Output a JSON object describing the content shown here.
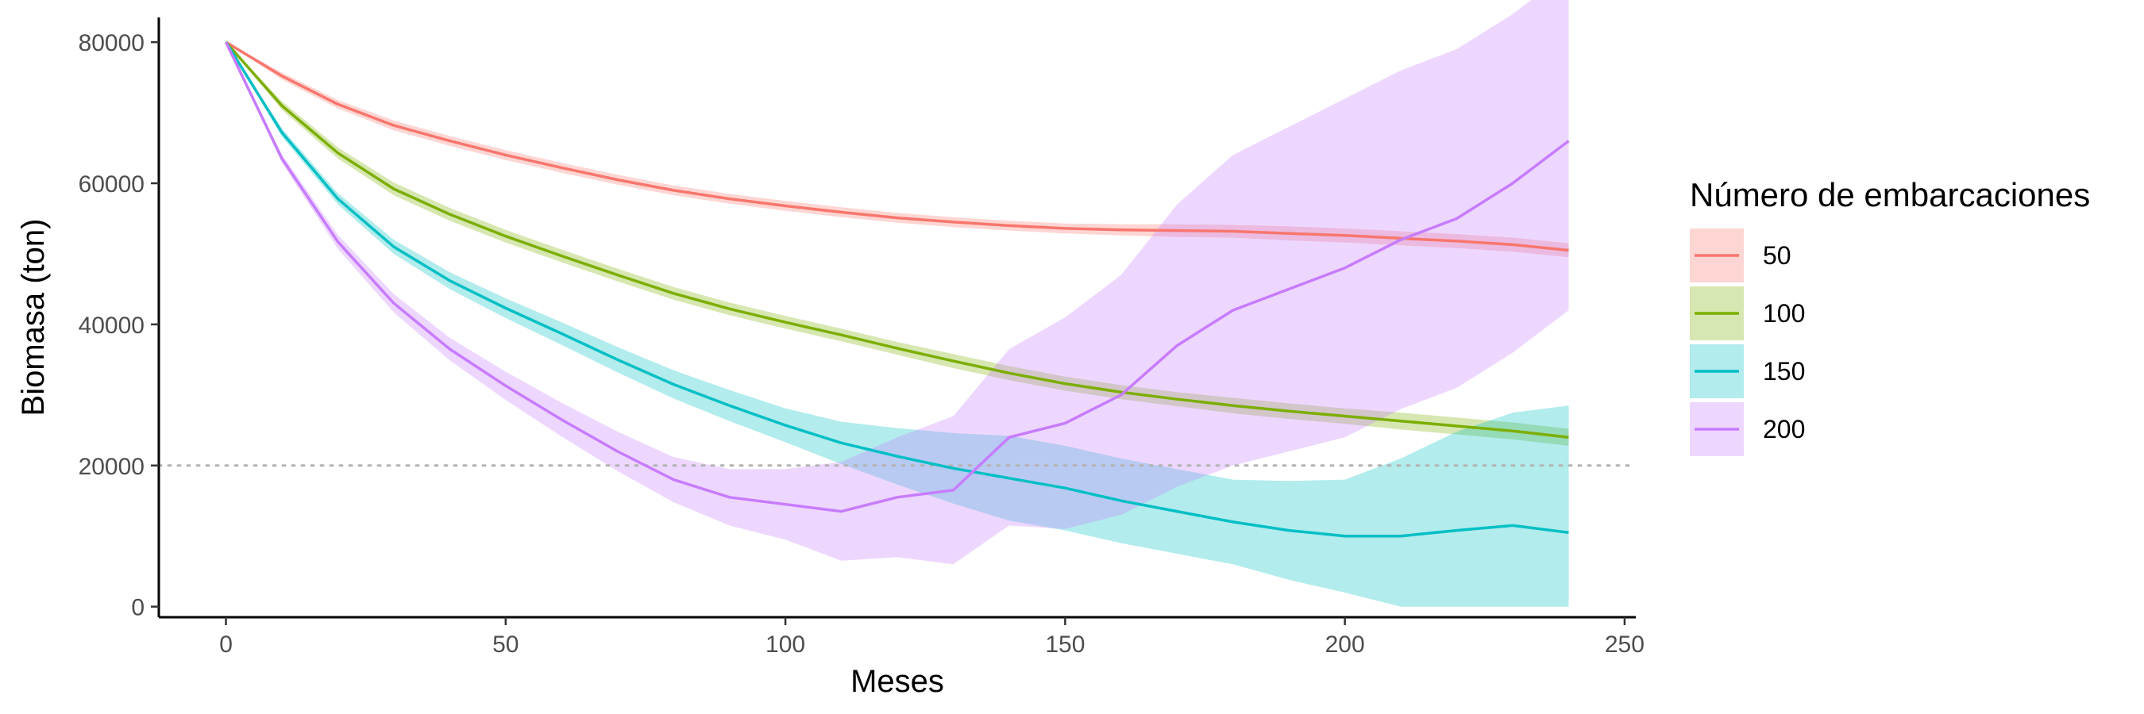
{
  "chart_data": {
    "type": "line",
    "title": "",
    "xlabel": "Meses",
    "ylabel": "Biomasa (ton)",
    "xlim": [
      -12,
      252
    ],
    "ylim": [
      -1500,
      83500
    ],
    "xticks": [
      0,
      50,
      100,
      150,
      200,
      250
    ],
    "xtick_labels": [
      "0",
      "50",
      "100",
      "150",
      "200",
      "250"
    ],
    "yticks": [
      0,
      20000,
      40000,
      60000,
      80000
    ],
    "ytick_labels": [
      "0",
      "20000",
      "40000",
      "60000",
      "80000"
    ],
    "grid": false,
    "reference_line": {
      "y": 20000,
      "style": "dotted",
      "color": "#b3b3b3"
    },
    "legend": {
      "title": "Número de embarcaciones",
      "position": "right"
    },
    "series": [
      {
        "name": "50",
        "color": "#F8766D",
        "x": [
          0,
          10,
          20,
          30,
          40,
          50,
          60,
          70,
          80,
          90,
          100,
          110,
          120,
          130,
          140,
          150,
          160,
          170,
          180,
          190,
          200,
          210,
          220,
          230,
          240
        ],
        "y": [
          80000,
          75200,
          71200,
          68200,
          66000,
          64000,
          62200,
          60500,
          59000,
          57800,
          56800,
          55900,
          55100,
          54500,
          54000,
          53600,
          53400,
          53300,
          53200,
          52900,
          52600,
          52200,
          51800,
          51300,
          50500
        ],
        "band_halfwidth": [
          0,
          500,
          600,
          700,
          700,
          700,
          700,
          700,
          700,
          700,
          700,
          700,
          700,
          700,
          700,
          700,
          800,
          900,
          900,
          1000,
          1000,
          1000,
          1000,
          1000,
          1000
        ]
      },
      {
        "name": "100",
        "color": "#7CAE00",
        "x": [
          0,
          10,
          20,
          30,
          40,
          50,
          60,
          70,
          80,
          90,
          100,
          110,
          120,
          130,
          140,
          150,
          160,
          170,
          180,
          190,
          200,
          210,
          220,
          230,
          240
        ],
        "y": [
          80000,
          71000,
          64300,
          59200,
          55600,
          52500,
          49700,
          47000,
          44400,
          42200,
          40300,
          38500,
          36600,
          34800,
          33100,
          31600,
          30400,
          29400,
          28500,
          27700,
          27000,
          26300,
          25600,
          24900,
          24000
        ],
        "band_halfwidth": [
          0,
          600,
          800,
          900,
          900,
          900,
          900,
          900,
          900,
          900,
          900,
          900,
          900,
          1000,
          1000,
          1000,
          1000,
          1000,
          1100,
          1100,
          1100,
          1200,
          1200,
          1200,
          1200
        ]
      },
      {
        "name": "150",
        "color": "#00BFC4",
        "x": [
          0,
          10,
          20,
          30,
          40,
          50,
          60,
          70,
          80,
          90,
          100,
          110,
          120,
          130,
          140,
          150,
          160,
          170,
          180,
          190,
          200,
          210,
          220,
          230,
          240
        ],
        "y": [
          80000,
          67200,
          57800,
          51000,
          46200,
          42300,
          38700,
          35000,
          31500,
          28500,
          25700,
          23200,
          21300,
          19600,
          18200,
          16800,
          15000,
          13500,
          12000,
          10800,
          10000,
          10000,
          10800,
          11500,
          10500
        ],
        "band_halfwidth": [
          0,
          600,
          800,
          1000,
          1200,
          1400,
          1600,
          1800,
          2000,
          2200,
          2400,
          3000,
          4000,
          5000,
          6000,
          6000,
          6000,
          6000,
          6000,
          7000,
          8000,
          11000,
          14000,
          16000,
          18000
        ]
      },
      {
        "name": "200",
        "color": "#C77CFF",
        "x": [
          0,
          10,
          20,
          30,
          40,
          50,
          60,
          70,
          80,
          90,
          100,
          110,
          120,
          130,
          140,
          150,
          160,
          170,
          180,
          190,
          200,
          210,
          220,
          230,
          240
        ],
        "y": [
          80000,
          63500,
          51700,
          43000,
          36500,
          31300,
          26500,
          22000,
          18000,
          15500,
          14500,
          13500,
          15500,
          16500,
          24000,
          26000,
          30000,
          37000,
          42000,
          45000,
          48000,
          52000,
          55000,
          60000,
          66000
        ],
        "band_halfwidth": [
          0,
          600,
          1000,
          1300,
          1600,
          2000,
          2400,
          2800,
          3200,
          4000,
          5000,
          7000,
          8500,
          10500,
          12500,
          15000,
          17000,
          20000,
          22000,
          23000,
          24000,
          24000,
          24000,
          24000,
          24000
        ]
      }
    ]
  }
}
